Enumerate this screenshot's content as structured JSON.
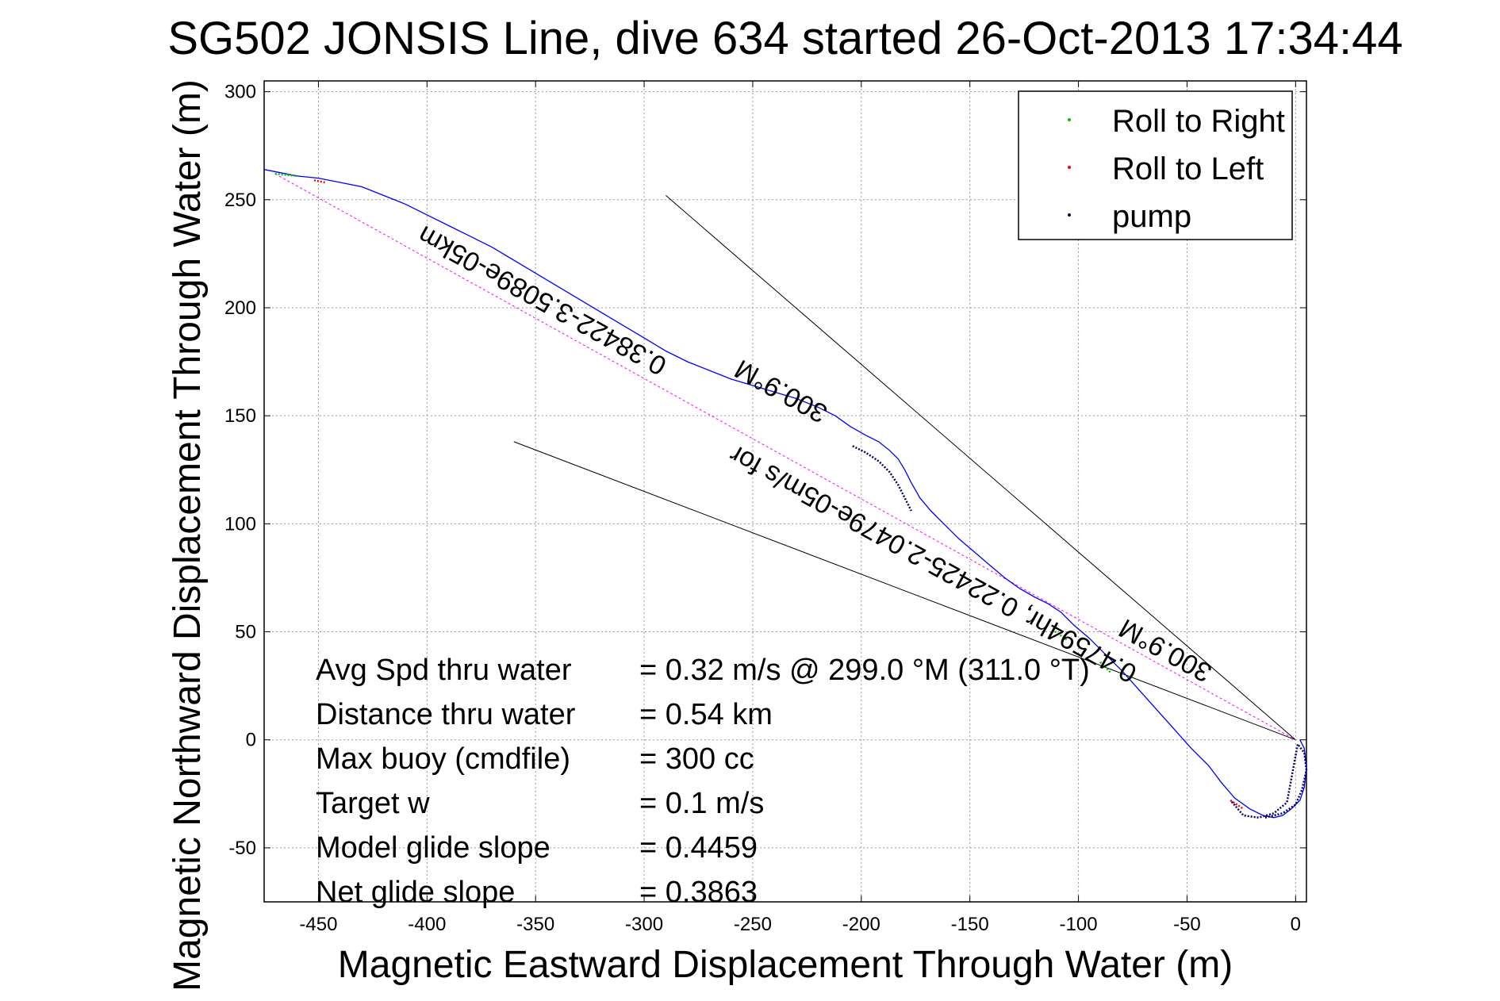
{
  "chart_data": {
    "type": "line",
    "title": "SG502 JONSIS Line, dive 634 started 26-Oct-2013 17:34:44",
    "xlabel": "Magnetic Eastward Displacement Through Water (m)",
    "ylabel": "Magnetic Northward Displacement Through Water (m)",
    "xlim": [
      -475,
      5
    ],
    "ylim": [
      -75,
      305
    ],
    "xticks": [
      -450,
      -400,
      -350,
      -300,
      -250,
      -200,
      -150,
      -100,
      -50,
      0
    ],
    "yticks": [
      -50,
      0,
      50,
      100,
      150,
      200,
      250,
      300
    ],
    "grid": true,
    "legend_position": "top-right",
    "legend": [
      {
        "label": "Roll to Right",
        "color": "#00c000"
      },
      {
        "label": "Roll to Left",
        "color": "#ff0000"
      },
      {
        "label": "pump",
        "color": "#000060"
      }
    ],
    "track_color": "#0000ff",
    "track": {
      "x": [
        2,
        4,
        5,
        4,
        2,
        -2,
        -6,
        -10,
        -15,
        -21,
        -28,
        -34,
        -40,
        -48,
        -56,
        -64,
        -72,
        -80,
        -88,
        -95,
        -102,
        -108,
        -114,
        -120,
        -127,
        -134,
        -141,
        -148,
        -155,
        -162,
        -168,
        -173,
        -177,
        -180,
        -183,
        -187,
        -192,
        -198,
        -205,
        -212,
        -220,
        -230,
        -240,
        -250,
        -260,
        -270,
        -280,
        -290,
        -300,
        -310,
        -320,
        -330,
        -340,
        -350,
        -360,
        -370,
        -380,
        -390,
        -400,
        -410,
        -420,
        -430,
        -440,
        -450,
        -460,
        -475
      ],
      "y": [
        0,
        -4,
        -13,
        -22,
        -28,
        -32,
        -35,
        -36,
        -35,
        -32,
        -27,
        -20,
        -12,
        -4,
        5,
        14,
        23,
        32,
        40,
        47,
        53,
        59,
        63,
        66,
        70,
        75,
        81,
        87,
        93,
        100,
        106,
        112,
        119,
        125,
        130,
        134,
        138,
        141,
        145,
        150,
        154,
        158,
        161,
        164,
        167,
        171,
        175,
        180,
        186,
        192,
        198,
        204,
        210,
        216,
        222,
        228,
        233,
        238,
        243,
        248,
        252,
        256,
        258,
        260,
        261,
        264
      ]
    },
    "pump_segments": [
      {
        "x": [
          -14,
          -6,
          0,
          3,
          5,
          4,
          1,
          -4,
          -10,
          -17,
          -24,
          -30
        ],
        "y": [
          -36,
          -34,
          -30,
          -23,
          -14,
          -6,
          -2,
          -29,
          -34,
          -36,
          -35,
          -28
        ]
      },
      {
        "x": [
          -204,
          -198,
          -192,
          -187,
          -183,
          -180,
          -177
        ],
        "y": [
          136,
          133,
          129,
          124,
          118,
          112,
          106
        ]
      }
    ],
    "roll_left_segments": [
      {
        "x": [
          -452,
          -447
        ],
        "y": [
          259,
          258
        ]
      },
      {
        "x": [
          -30,
          -24
        ],
        "y": [
          -28,
          -32
        ]
      }
    ],
    "roll_right_segments": [
      {
        "x": [
          -470,
          -460
        ],
        "y": [
          262,
          261
        ]
      },
      {
        "x": [
          -112,
          -105
        ],
        "y": [
          51,
          46
        ]
      },
      {
        "x": [
          -90,
          -85
        ],
        "y": [
          36,
          31
        ]
      }
    ],
    "reference_lines": [
      {
        "x": [
          -290,
          0
        ],
        "y": [
          252,
          0
        ],
        "color": "#000000"
      },
      {
        "x": [
          -360,
          0
        ],
        "y": [
          138,
          0
        ],
        "color": "#000000"
      }
    ],
    "heading_line": {
      "x": [
        -470,
        0
      ],
      "y": [
        262,
        0
      ],
      "color": "#ff00ff"
    },
    "annotations": [
      {
        "text": "0.38422-3.5089e-05km",
        "x": -345,
        "y": 207,
        "rotation": 209
      },
      {
        "text": "300.9°M",
        "x": -235,
        "y": 165,
        "rotation": 209
      },
      {
        "text": "0.47594hr, 0.22425-2.0479e-05m/s for",
        "x": -165,
        "y": 85,
        "rotation": 209
      },
      {
        "text": "300.9°M",
        "x": -58,
        "y": 45,
        "rotation": 209
      }
    ],
    "info": [
      {
        "label": "Avg Spd thru water",
        "value": "=  0.32 m/s @ 299.0 °M (311.0 °T)"
      },
      {
        "label": "Distance thru water",
        "value": "=  0.54 km"
      },
      {
        "label": "Max buoy (cmdfile)",
        "value": "= 300 cc"
      },
      {
        "label": "Target w",
        "value": "= 0.1 m/s"
      },
      {
        "label": "Model glide slope",
        "value": "= 0.4459"
      },
      {
        "label": "Net glide slope",
        "value": "= 0.3863"
      }
    ]
  }
}
